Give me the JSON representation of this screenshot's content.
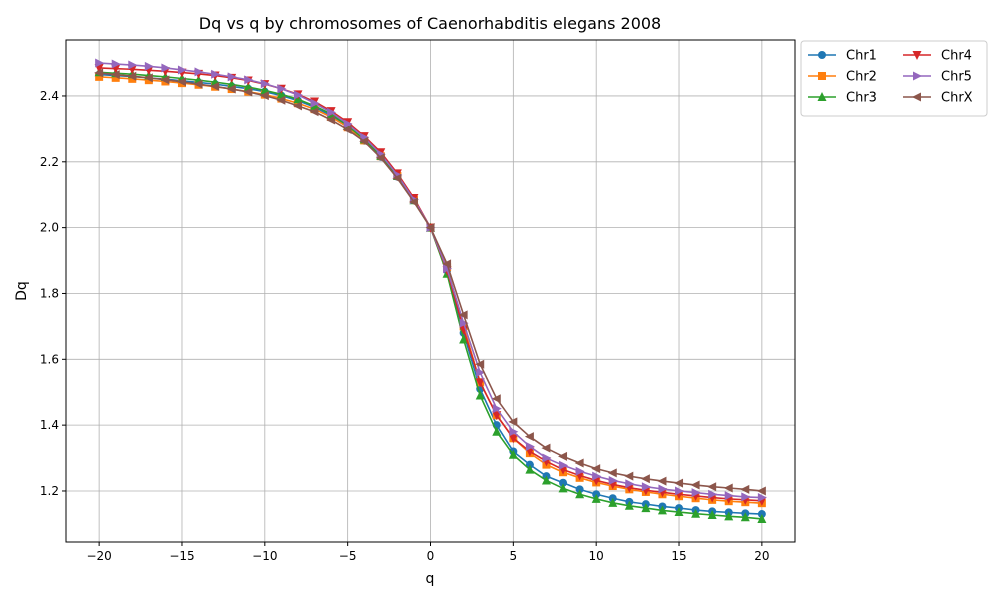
{
  "chart_data": {
    "type": "line",
    "title": "Dq vs q by chromosomes of Caenorhabditis elegans 2008",
    "xlabel": "q",
    "ylabel": "Dq",
    "xlim": [
      -22,
      22
    ],
    "ylim": [
      1.045,
      2.57
    ],
    "xticks": [
      -20,
      -15,
      -10,
      -5,
      0,
      5,
      10,
      15,
      20
    ],
    "xtick_labels": [
      "−20",
      "−15",
      "−10",
      "−5",
      "0",
      "5",
      "10",
      "15",
      "20"
    ],
    "yticks": [
      1.2,
      1.4,
      1.6,
      1.8,
      2.0,
      2.2,
      2.4
    ],
    "ytick_labels": [
      "1.2",
      "1.4",
      "1.6",
      "1.8",
      "2.0",
      "2.2",
      "2.4"
    ],
    "grid": true,
    "legend_position": "outside upper-right",
    "legend_columns": 2,
    "x": [
      -20,
      -19,
      -18,
      -17,
      -16,
      -15,
      -14,
      -13,
      -12,
      -11,
      -10,
      -9,
      -8,
      -7,
      -6,
      -5,
      -4,
      -3,
      -2,
      -1,
      0,
      1,
      2,
      3,
      4,
      5,
      6,
      7,
      8,
      9,
      10,
      11,
      12,
      13,
      14,
      15,
      16,
      17,
      18,
      19,
      20
    ],
    "series": [
      {
        "name": "Chr1",
        "color": "#1f77b4",
        "marker": "circle",
        "values": [
          2.465,
          2.462,
          2.459,
          2.455,
          2.451,
          2.446,
          2.441,
          2.436,
          2.429,
          2.422,
          2.413,
          2.401,
          2.386,
          2.366,
          2.34,
          2.306,
          2.264,
          2.215,
          2.155,
          2.083,
          2.0,
          1.87,
          1.68,
          1.51,
          1.4,
          1.32,
          1.28,
          1.245,
          1.225,
          1.205,
          1.19,
          1.178,
          1.167,
          1.16,
          1.153,
          1.148,
          1.142,
          1.138,
          1.135,
          1.132,
          1.13
        ]
      },
      {
        "name": "Chr2",
        "color": "#ff7f0e",
        "marker": "square",
        "values": [
          2.458,
          2.455,
          2.452,
          2.448,
          2.444,
          2.439,
          2.434,
          2.428,
          2.421,
          2.413,
          2.404,
          2.392,
          2.378,
          2.36,
          2.336,
          2.305,
          2.265,
          2.217,
          2.157,
          2.084,
          2.0,
          1.88,
          1.7,
          1.53,
          1.43,
          1.36,
          1.315,
          1.28,
          1.257,
          1.24,
          1.226,
          1.215,
          1.205,
          1.197,
          1.19,
          1.184,
          1.178,
          1.173,
          1.169,
          1.166,
          1.163
        ]
      },
      {
        "name": "Chr3",
        "color": "#2ca02c",
        "marker": "triangle-up",
        "values": [
          2.472,
          2.469,
          2.466,
          2.462,
          2.458,
          2.453,
          2.448,
          2.442,
          2.435,
          2.427,
          2.417,
          2.405,
          2.39,
          2.37,
          2.345,
          2.31,
          2.268,
          2.218,
          2.157,
          2.083,
          2.0,
          1.86,
          1.66,
          1.49,
          1.38,
          1.31,
          1.265,
          1.232,
          1.208,
          1.19,
          1.176,
          1.164,
          1.155,
          1.148,
          1.141,
          1.136,
          1.131,
          1.127,
          1.123,
          1.12,
          1.115
        ]
      },
      {
        "name": "Chr4",
        "color": "#d62728",
        "marker": "triangle-down",
        "values": [
          2.485,
          2.483,
          2.481,
          2.478,
          2.475,
          2.471,
          2.467,
          2.462,
          2.455,
          2.447,
          2.436,
          2.422,
          2.405,
          2.383,
          2.354,
          2.32,
          2.278,
          2.229,
          2.165,
          2.09,
          2.0,
          1.87,
          1.69,
          1.53,
          1.43,
          1.36,
          1.32,
          1.29,
          1.265,
          1.247,
          1.232,
          1.22,
          1.21,
          1.202,
          1.196,
          1.19,
          1.185,
          1.18,
          1.176,
          1.173,
          1.17
        ]
      },
      {
        "name": "Chr5",
        "color": "#9467bd",
        "marker": "triangle-right",
        "values": [
          2.5,
          2.497,
          2.494,
          2.49,
          2.485,
          2.479,
          2.473,
          2.466,
          2.458,
          2.449,
          2.437,
          2.422,
          2.403,
          2.378,
          2.35,
          2.315,
          2.274,
          2.223,
          2.16,
          2.085,
          2.0,
          1.875,
          1.71,
          1.56,
          1.45,
          1.38,
          1.335,
          1.3,
          1.278,
          1.26,
          1.245,
          1.232,
          1.222,
          1.213,
          1.206,
          1.2,
          1.195,
          1.19,
          1.186,
          1.182,
          1.18
        ]
      },
      {
        "name": "ChrX",
        "color": "#8c564b",
        "marker": "triangle-left",
        "values": [
          2.47,
          2.465,
          2.46,
          2.455,
          2.449,
          2.443,
          2.436,
          2.429,
          2.421,
          2.412,
          2.401,
          2.387,
          2.37,
          2.352,
          2.327,
          2.298,
          2.262,
          2.212,
          2.15,
          2.078,
          2.0,
          1.89,
          1.735,
          1.585,
          1.48,
          1.41,
          1.365,
          1.33,
          1.305,
          1.285,
          1.268,
          1.255,
          1.245,
          1.237,
          1.23,
          1.224,
          1.218,
          1.213,
          1.209,
          1.205,
          1.2
        ]
      }
    ]
  }
}
